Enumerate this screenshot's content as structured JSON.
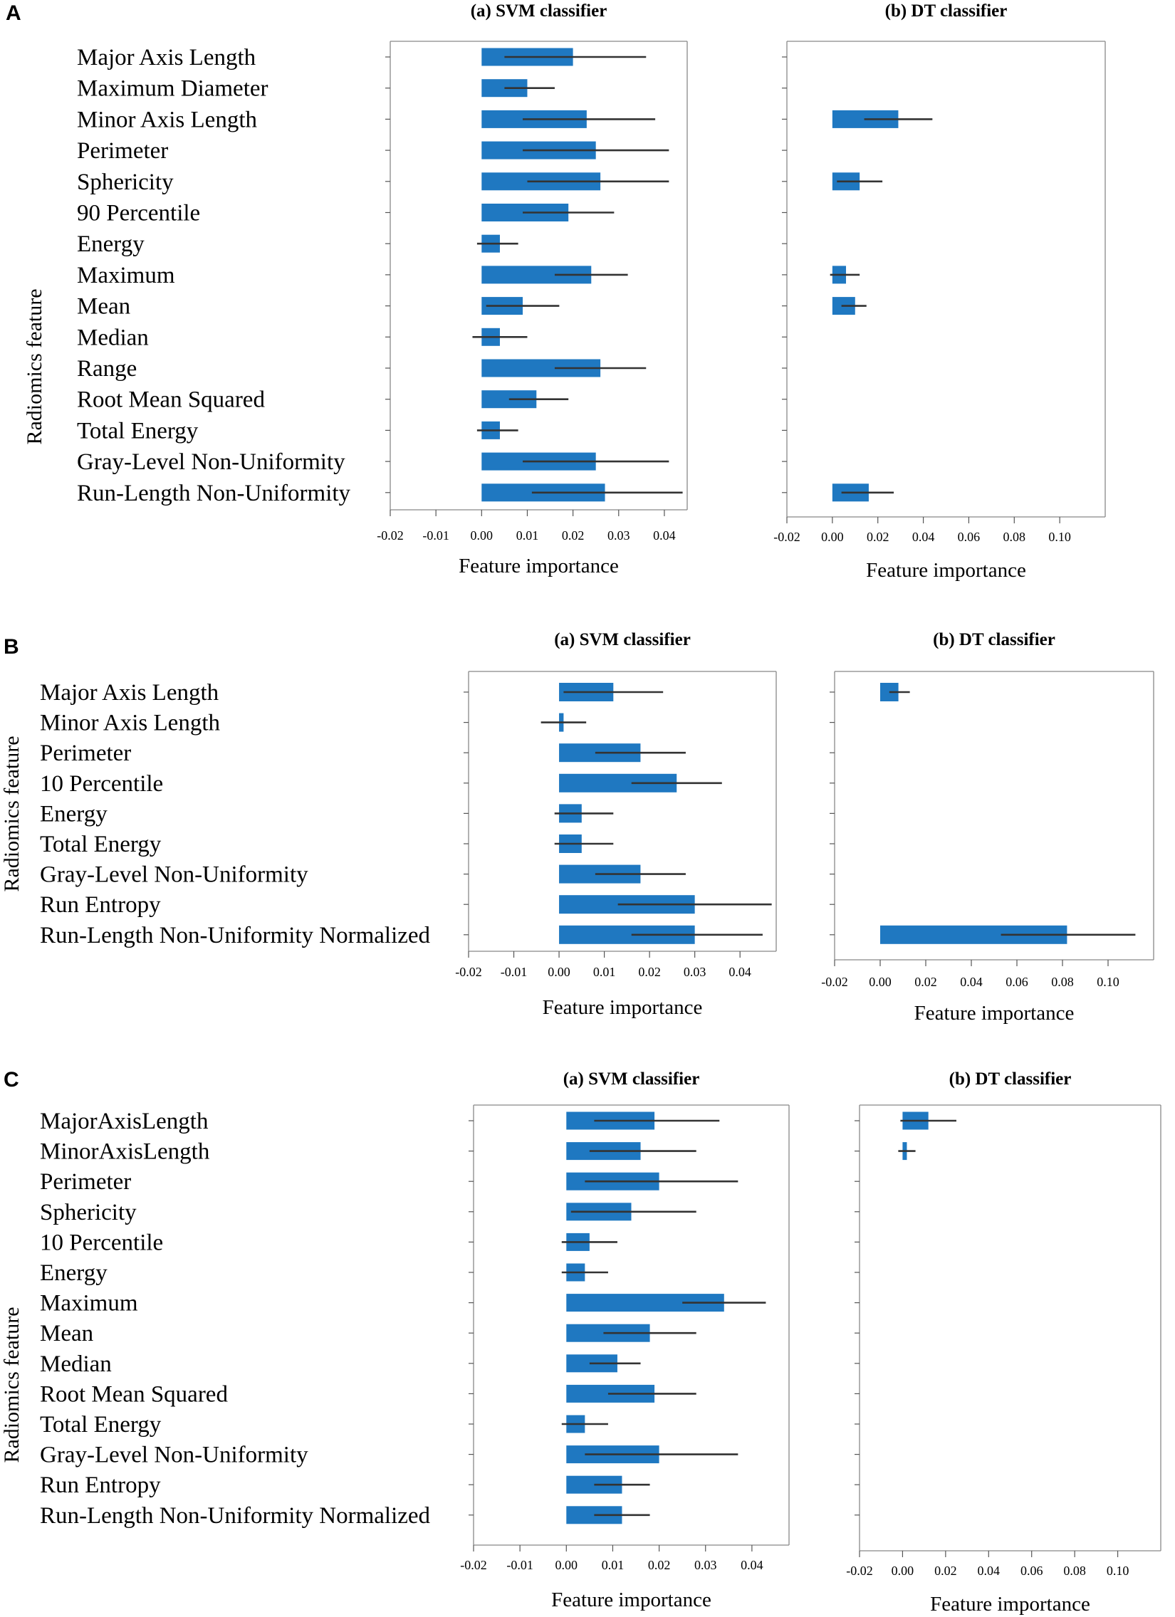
{
  "figure": {
    "ylabel": "Radiomics feature",
    "xlabel": "Feature importance"
  },
  "colors": {
    "bar": "#1f78c1",
    "error_bar": "#333333"
  },
  "chart_data": [
    {
      "type": "bar",
      "orientation": "horizontal",
      "panel": "A",
      "title": "(a) SVM classifier",
      "xlabel": "Feature importance",
      "ylabel": "Radiomics feature",
      "xlim": [
        -0.02,
        0.045
      ],
      "xticks": [
        -0.02,
        -0.01,
        0.0,
        0.01,
        0.02,
        0.03,
        0.04
      ],
      "categories": [
        "Major Axis Length",
        "Maximum Diameter",
        "Minor Axis Length",
        "Perimeter",
        "Sphericity",
        "90 Percentile",
        "Energy",
        "Maximum",
        "Mean",
        "Median",
        "Range",
        "Root Mean Squared",
        "Total Energy",
        "Gray-Level Non-Uniformity",
        "Run-Length Non-Uniformity"
      ],
      "values": [
        0.02,
        0.01,
        0.023,
        0.025,
        0.026,
        0.019,
        0.004,
        0.024,
        0.009,
        0.004,
        0.026,
        0.012,
        0.004,
        0.025,
        0.027
      ],
      "error_low": [
        0.005,
        0.005,
        0.009,
        0.009,
        0.01,
        0.009,
        -0.001,
        0.016,
        0.001,
        -0.002,
        0.016,
        0.006,
        -0.001,
        0.009,
        0.011
      ],
      "error_high": [
        0.036,
        0.016,
        0.038,
        0.041,
        0.041,
        0.029,
        0.008,
        0.032,
        0.017,
        0.01,
        0.036,
        0.019,
        0.008,
        0.041,
        0.044
      ]
    },
    {
      "type": "bar",
      "orientation": "horizontal",
      "panel": "A",
      "title": "(b) DT classifier",
      "xlabel": "Feature importance",
      "xlim": [
        -0.02,
        0.12
      ],
      "xticks": [
        -0.02,
        0.0,
        0.02,
        0.04,
        0.06,
        0.08,
        0.1
      ],
      "categories": [
        "Major Axis Length",
        "Maximum Diameter",
        "Minor Axis Length",
        "Perimeter",
        "Sphericity",
        "90 Percentile",
        "Energy",
        "Maximum",
        "Mean",
        "Median",
        "Range",
        "Root Mean Squared",
        "Total Energy",
        "Gray-Level Non-Uniformity",
        "Run-Length Non-Uniformity"
      ],
      "values": [
        0,
        0,
        0.029,
        0,
        0.012,
        0,
        0,
        0.006,
        0.01,
        0,
        0,
        0,
        0,
        0,
        0.016
      ],
      "error_low": [
        0,
        0,
        0.014,
        0,
        0.002,
        0,
        0,
        -0.001,
        0.004,
        0,
        0,
        0,
        0,
        0,
        0.004
      ],
      "error_high": [
        0,
        0,
        0.044,
        0,
        0.022,
        0,
        0,
        0.012,
        0.015,
        0,
        0,
        0,
        0,
        0,
        0.027
      ]
    },
    {
      "type": "bar",
      "orientation": "horizontal",
      "panel": "B",
      "title": "(a) SVM classifier",
      "xlabel": "Feature importance",
      "ylabel": "Radiomics feature",
      "xlim": [
        -0.02,
        0.048
      ],
      "xticks": [
        -0.02,
        -0.01,
        0.0,
        0.01,
        0.02,
        0.03,
        0.04
      ],
      "categories": [
        "Major Axis Length",
        "Minor Axis Length",
        "Perimeter",
        "10 Percentile",
        "Energy",
        "Total Energy",
        "Gray-Level Non-Uniformity",
        "Run Entropy",
        "Run-Length Non-Uniformity Normalized"
      ],
      "values": [
        0.012,
        0.001,
        0.018,
        0.026,
        0.005,
        0.005,
        0.018,
        0.03,
        0.03
      ],
      "error_low": [
        0.001,
        -0.004,
        0.008,
        0.016,
        -0.001,
        -0.001,
        0.008,
        0.013,
        0.016
      ],
      "error_high": [
        0.023,
        0.006,
        0.028,
        0.036,
        0.012,
        0.012,
        0.028,
        0.047,
        0.045
      ]
    },
    {
      "type": "bar",
      "orientation": "horizontal",
      "panel": "B",
      "title": "(b) DT classifier",
      "xlabel": "Feature importance",
      "xlim": [
        -0.02,
        0.12
      ],
      "xticks": [
        -0.02,
        0.0,
        0.02,
        0.04,
        0.06,
        0.08,
        0.1
      ],
      "categories": [
        "Major Axis Length",
        "Minor Axis Length",
        "Perimeter",
        "10 Percentile",
        "Energy",
        "Total Energy",
        "Gray-Level Non-Uniformity",
        "Run Entropy",
        "Run-Length Non-Uniformity Normalized"
      ],
      "values": [
        0.008,
        0,
        0,
        0,
        0,
        0,
        0,
        0,
        0.082
      ],
      "error_low": [
        0.004,
        0,
        0,
        0,
        0,
        0,
        0,
        0,
        0.053
      ],
      "error_high": [
        0.013,
        0,
        0,
        0,
        0,
        0,
        0,
        0,
        0.112
      ]
    },
    {
      "type": "bar",
      "orientation": "horizontal",
      "panel": "C",
      "title": "(a) SVM classifier",
      "xlabel": "Feature importance",
      "ylabel": "Radiomics feature",
      "xlim": [
        -0.02,
        0.048
      ],
      "xticks": [
        -0.02,
        -0.01,
        0.0,
        0.01,
        0.02,
        0.03,
        0.04
      ],
      "categories": [
        "MajorAxisLength",
        "MinorAxisLength",
        "Perimeter",
        "Sphericity",
        "10 Percentile",
        "Energy",
        "Maximum",
        "Mean",
        "Median",
        "Root Mean Squared",
        "Total Energy",
        "Gray-Level Non-Uniformity",
        "Run Entropy",
        "Run-Length Non-Uniformity Normalized"
      ],
      "values": [
        0.019,
        0.016,
        0.02,
        0.014,
        0.005,
        0.004,
        0.034,
        0.018,
        0.011,
        0.019,
        0.004,
        0.02,
        0.012,
        0.012
      ],
      "error_low": [
        0.006,
        0.005,
        0.004,
        0.001,
        -0.001,
        -0.001,
        0.025,
        0.008,
        0.005,
        0.009,
        -0.001,
        0.004,
        0.006,
        0.006
      ],
      "error_high": [
        0.033,
        0.028,
        0.037,
        0.028,
        0.011,
        0.009,
        0.043,
        0.028,
        0.016,
        0.028,
        0.009,
        0.037,
        0.018,
        0.018
      ]
    },
    {
      "type": "bar",
      "orientation": "horizontal",
      "panel": "C",
      "title": "(b) DT classifier",
      "xlabel": "Feature importance",
      "xlim": [
        -0.02,
        0.12
      ],
      "xticks": [
        -0.02,
        0.0,
        0.02,
        0.04,
        0.06,
        0.08,
        0.1
      ],
      "categories": [
        "MajorAxisLength",
        "MinorAxisLength",
        "Perimeter",
        "Sphericity",
        "10 Percentile",
        "Energy",
        "Maximum",
        "Mean",
        "Median",
        "Root Mean Squared",
        "Total Energy",
        "Gray-Level Non-Uniformity",
        "Run Entropy",
        "Run-Length Non-Uniformity Normalized"
      ],
      "values": [
        0.012,
        0.002,
        0,
        0,
        0,
        0,
        0,
        0,
        0,
        0,
        0,
        0,
        0,
        0
      ],
      "error_low": [
        -0.001,
        -0.002,
        0,
        0,
        0,
        0,
        0,
        0,
        0,
        0,
        0,
        0,
        0,
        0
      ],
      "error_high": [
        0.025,
        0.006,
        0,
        0,
        0,
        0,
        0,
        0,
        0,
        0,
        0,
        0,
        0,
        0
      ]
    }
  ]
}
